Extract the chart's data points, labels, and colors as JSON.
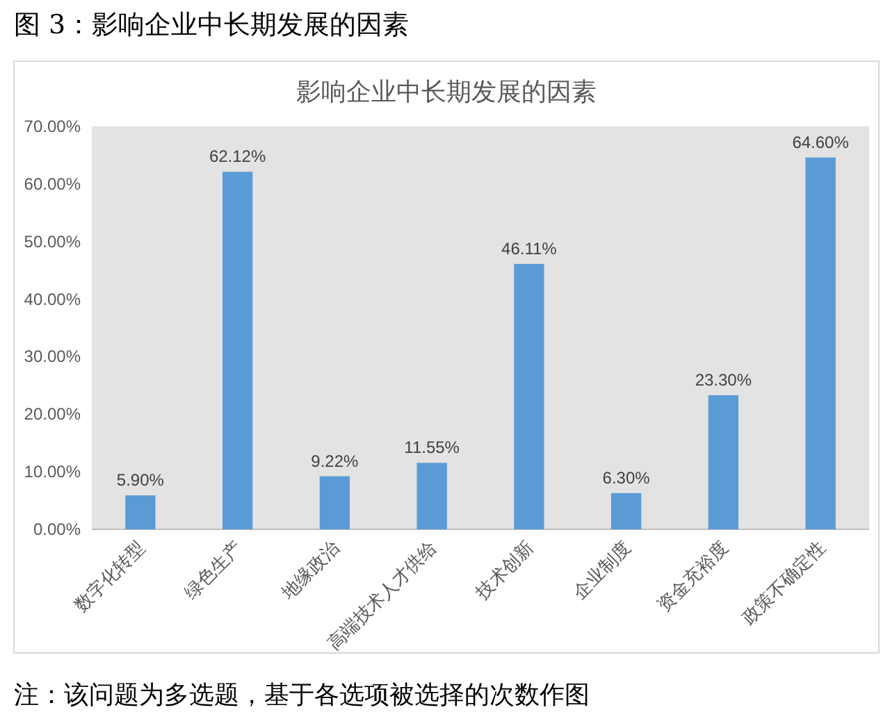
{
  "chart_data": {
    "type": "bar",
    "title": "影响企业中长期发展的因素",
    "categories": [
      "数字化转型",
      "绿色生产",
      "地缘政治",
      "高端技术人才供给",
      "技术创新",
      "企业制度",
      "资金充裕度",
      "政策不确定性"
    ],
    "values": [
      5.9,
      62.12,
      9.22,
      11.55,
      46.11,
      6.3,
      23.3,
      64.6
    ],
    "value_labels": [
      "5.90%",
      "62.12%",
      "9.22%",
      "11.55%",
      "46.11%",
      "6.30%",
      "23.30%",
      "64.60%"
    ],
    "color": "#5b9bd5",
    "ylim": [
      0,
      70
    ],
    "yticks": [
      {
        "value": 0,
        "label": "0.00%"
      },
      {
        "value": 10,
        "label": "10.00%"
      },
      {
        "value": 20,
        "label": "20.00%"
      },
      {
        "value": 30,
        "label": "30.00%"
      },
      {
        "value": 40,
        "label": "40.00%"
      },
      {
        "value": 50,
        "label": "50.00%"
      },
      {
        "value": 60,
        "label": "60.00%"
      },
      {
        "value": 70,
        "label": "70.00%"
      }
    ],
    "annotations": [
      "图 3：影响企业中长期发展的因素",
      "注：该问题为多选题，基于各选项被选择的次数作图"
    ]
  }
}
